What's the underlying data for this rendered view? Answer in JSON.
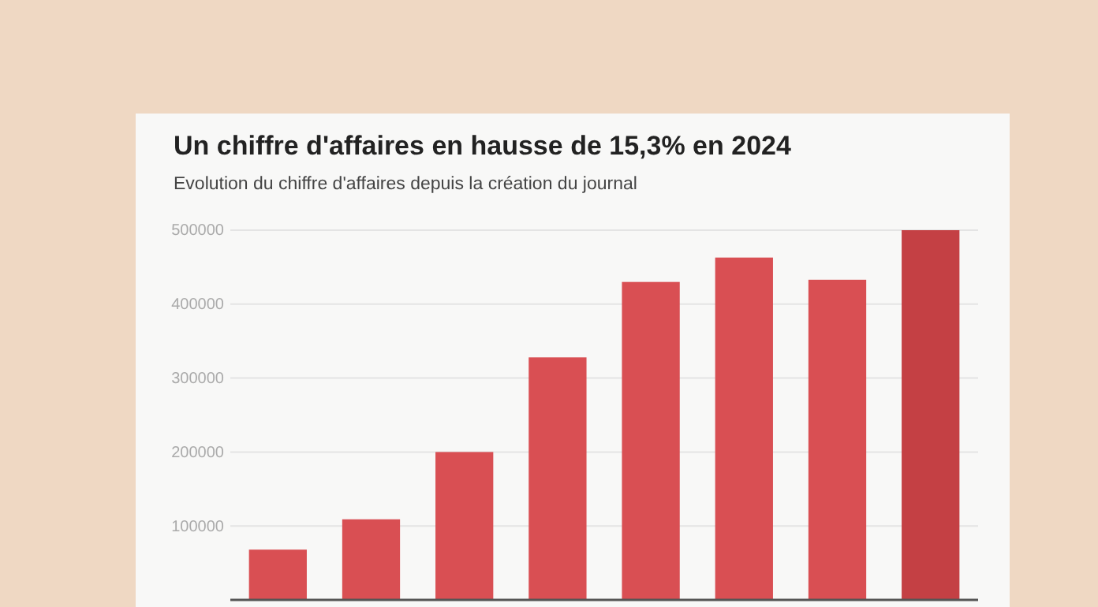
{
  "chart_data": {
    "type": "bar",
    "title": "Un chiffre d'affaires en hausse de 15,3% en 2024",
    "subtitle": "Evolution du chiffre d'affaires depuis la création du journal",
    "categories": [
      null,
      null,
      null,
      null,
      null,
      null,
      null,
      null
    ],
    "values": [
      68000,
      109000,
      200000,
      328000,
      430000,
      463000,
      433000,
      500000
    ],
    "colors": [
      "#d94f53",
      "#d94f53",
      "#d94f53",
      "#d94f53",
      "#d94f53",
      "#d94f53",
      "#d94f53",
      "#c44044"
    ],
    "ylim": [
      0,
      500000
    ],
    "yticks": [
      100000,
      200000,
      300000,
      400000,
      500000
    ],
    "grid": "y"
  }
}
